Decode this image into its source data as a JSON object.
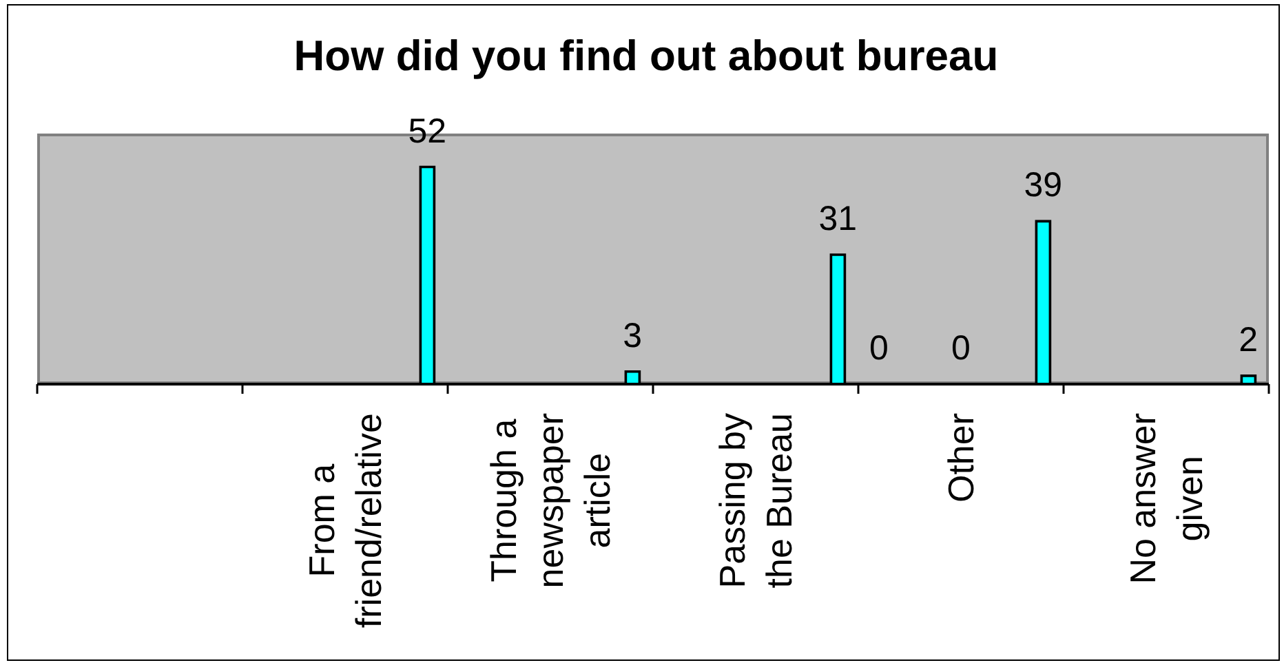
{
  "chart_data": {
    "type": "bar",
    "title": "How did you find out about bureau",
    "categories": [
      null,
      "From a friend/relative",
      "Through a newspaper article",
      "Passing by the Bureau",
      "Other",
      "No answer given"
    ],
    "color": "#00ffff",
    "series": [
      {
        "values": [
          null,
          null,
          null,
          null,
          0,
          null
        ]
      },
      {
        "values": [
          null,
          null,
          null,
          null,
          0,
          null
        ]
      },
      {
        "values": [
          null,
          52,
          3,
          31,
          39,
          2
        ]
      }
    ],
    "ylim": [
      0,
      60
    ],
    "data_labels": true,
    "tick_labels": "x"
  }
}
